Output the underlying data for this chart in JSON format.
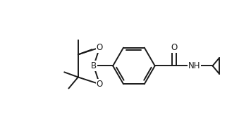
{
  "bg_color": "#ffffff",
  "line_color": "#1a1a1a",
  "line_width": 1.4,
  "font_size": 8.5,
  "fig_width": 3.56,
  "fig_height": 1.76,
  "dpi": 100,
  "xlim": [
    0,
    7.12
  ],
  "ylim": [
    0,
    3.52
  ]
}
